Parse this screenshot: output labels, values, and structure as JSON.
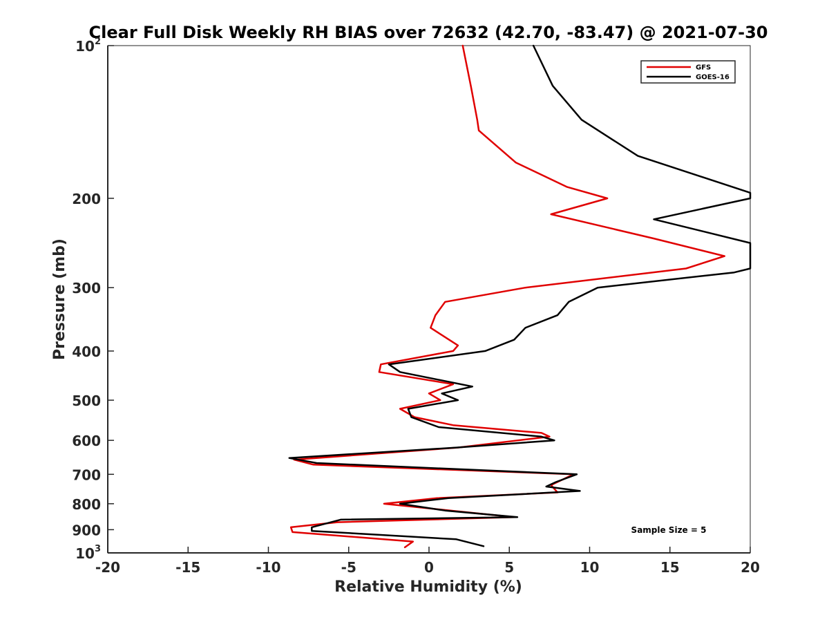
{
  "chart_data": {
    "type": "line",
    "title": "Clear Full Disk Weekly RH BIAS over 72632 (42.70, -83.47) @ 2021-07-30",
    "xlabel": "Relative Humidity (%)",
    "ylabel": "Pressure (mb)",
    "xlim": [
      -20,
      20
    ],
    "ylim": [
      100,
      1000
    ],
    "y_scale": "log",
    "y_reversed": true,
    "x_ticks": [
      -20,
      -15,
      -10,
      -5,
      0,
      5,
      10,
      15,
      20
    ],
    "x_tick_labels": [
      "-20",
      "-15",
      "-10",
      "-5",
      "0",
      "5",
      "10",
      "15",
      "20"
    ],
    "y_ticks": [
      100,
      200,
      300,
      400,
      500,
      600,
      700,
      800,
      900,
      1000
    ],
    "y_tick_labels": [
      {
        "base": "10",
        "sup": "2"
      },
      {
        "base": "200",
        "sup": ""
      },
      {
        "base": "300",
        "sup": ""
      },
      {
        "base": "400",
        "sup": ""
      },
      {
        "base": "500",
        "sup": ""
      },
      {
        "base": "600",
        "sup": ""
      },
      {
        "base": "700",
        "sup": ""
      },
      {
        "base": "800",
        "sup": ""
      },
      {
        "base": "900",
        "sup": ""
      },
      {
        "base": "10",
        "sup": "3"
      }
    ],
    "grid": false,
    "legend_position": "top-right",
    "series": [
      {
        "name": "GFS",
        "color": "#e00000",
        "points": [
          [
            2.1,
            100
          ],
          [
            2.6,
            120
          ],
          [
            3.0,
            140
          ],
          [
            3.1,
            147
          ],
          [
            5.4,
            170
          ],
          [
            8.6,
            190
          ],
          [
            11.1,
            200
          ],
          [
            7.6,
            215
          ],
          [
            14.0,
            240
          ],
          [
            18.4,
            260
          ],
          [
            16.0,
            275
          ],
          [
            6.0,
            300
          ],
          [
            1.0,
            320
          ],
          [
            0.4,
            340
          ],
          [
            0.1,
            360
          ],
          [
            1.8,
            390
          ],
          [
            1.5,
            400
          ],
          [
            -3.0,
            425
          ],
          [
            -3.1,
            440
          ],
          [
            1.5,
            465
          ],
          [
            0.0,
            485
          ],
          [
            0.7,
            500
          ],
          [
            -1.8,
            520
          ],
          [
            -0.9,
            540
          ],
          [
            1.5,
            560
          ],
          [
            7.0,
            580
          ],
          [
            7.5,
            590
          ],
          [
            1.8,
            620
          ],
          [
            -8.4,
            655
          ],
          [
            -7.2,
            670
          ],
          [
            9.0,
            700
          ],
          [
            7.6,
            735
          ],
          [
            8.0,
            760
          ],
          [
            0.5,
            780
          ],
          [
            -2.8,
            800
          ],
          [
            5.3,
            850
          ],
          [
            -5.7,
            870
          ],
          [
            -8.6,
            890
          ],
          [
            -8.5,
            910
          ],
          [
            -1.0,
            950
          ],
          [
            -1.5,
            975
          ]
        ]
      },
      {
        "name": "GOES-16",
        "color": "#000000",
        "points": [
          [
            6.5,
            100
          ],
          [
            7.7,
            120
          ],
          [
            9.5,
            140
          ],
          [
            13.0,
            165
          ],
          [
            20.0,
            195
          ],
          [
            20.0,
            200
          ],
          [
            14.0,
            220
          ],
          [
            20.0,
            245
          ],
          [
            20.0,
            275
          ],
          [
            19.0,
            280
          ],
          [
            10.5,
            300
          ],
          [
            8.7,
            320
          ],
          [
            8.0,
            340
          ],
          [
            6.0,
            360
          ],
          [
            5.3,
            380
          ],
          [
            3.5,
            400
          ],
          [
            -2.5,
            425
          ],
          [
            -1.8,
            440
          ],
          [
            2.7,
            470
          ],
          [
            0.8,
            485
          ],
          [
            1.8,
            500
          ],
          [
            -1.3,
            520
          ],
          [
            -1.1,
            540
          ],
          [
            0.6,
            565
          ],
          [
            7.0,
            590
          ],
          [
            7.8,
            600
          ],
          [
            1.7,
            620
          ],
          [
            -8.7,
            650
          ],
          [
            -7.0,
            665
          ],
          [
            9.2,
            700
          ],
          [
            7.9,
            725
          ],
          [
            7.3,
            740
          ],
          [
            9.4,
            755
          ],
          [
            1.2,
            780
          ],
          [
            -1.8,
            800
          ],
          [
            1.0,
            825
          ],
          [
            5.5,
            850
          ],
          [
            -5.5,
            860
          ],
          [
            -7.3,
            890
          ],
          [
            -7.3,
            905
          ],
          [
            1.7,
            940
          ],
          [
            3.4,
            970
          ]
        ]
      }
    ],
    "annotations": [
      {
        "text": "Sample Size = 5"
      }
    ]
  }
}
